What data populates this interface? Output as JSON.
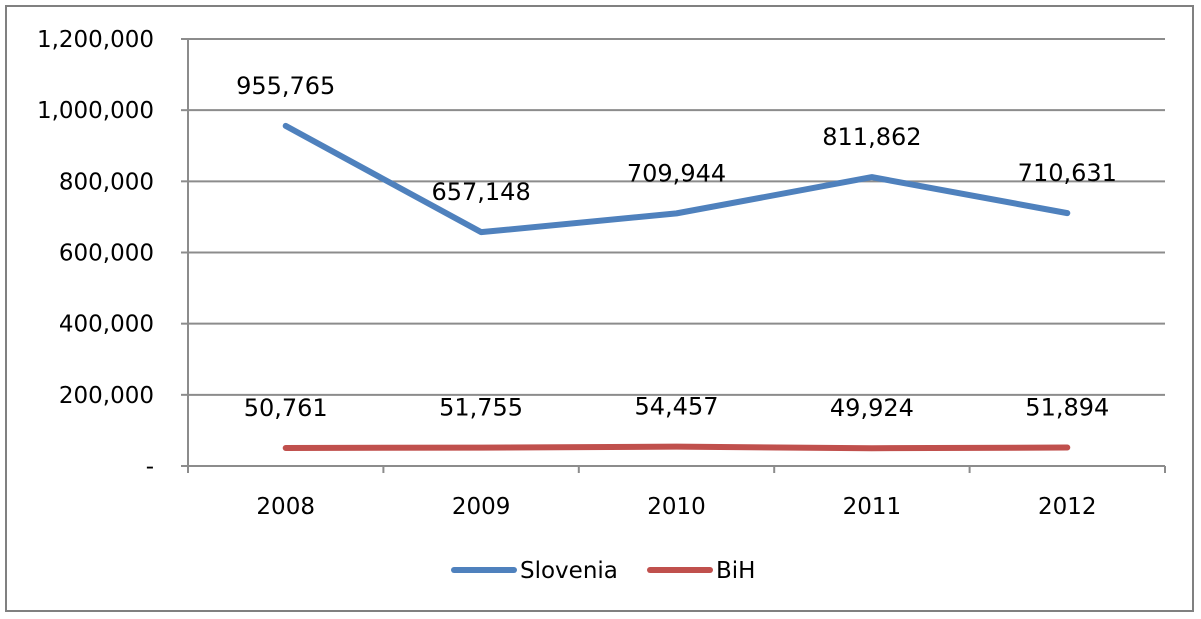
{
  "chart_data": {
    "type": "line",
    "title": "",
    "xlabel": "",
    "ylabel": "",
    "categories": [
      "2008",
      "2009",
      "2010",
      "2011",
      "2012"
    ],
    "series": [
      {
        "name": "Slovenia",
        "color": "#4F81BD",
        "values": [
          955765,
          657148,
          709944,
          811862,
          710631
        ],
        "labels": [
          "955,765",
          "657,148",
          "709,944",
          "811,862",
          "710,631"
        ]
      },
      {
        "name": "BiH",
        "color": "#C0504D",
        "values": [
          50761,
          51755,
          54457,
          49924,
          51894
        ],
        "labels": [
          "50,761",
          "51,755",
          "54,457",
          "49,924",
          "51,894"
        ]
      }
    ],
    "ylim": [
      0,
      1200000
    ],
    "yticks": [
      0,
      200000,
      400000,
      600000,
      800000,
      1000000,
      1200000
    ],
    "ytick_labels": [
      "-",
      "200,000",
      "400,000",
      "600,000",
      "800,000",
      "1,000,000",
      "1,200,000"
    ],
    "grid": true,
    "legend": "bottom"
  }
}
